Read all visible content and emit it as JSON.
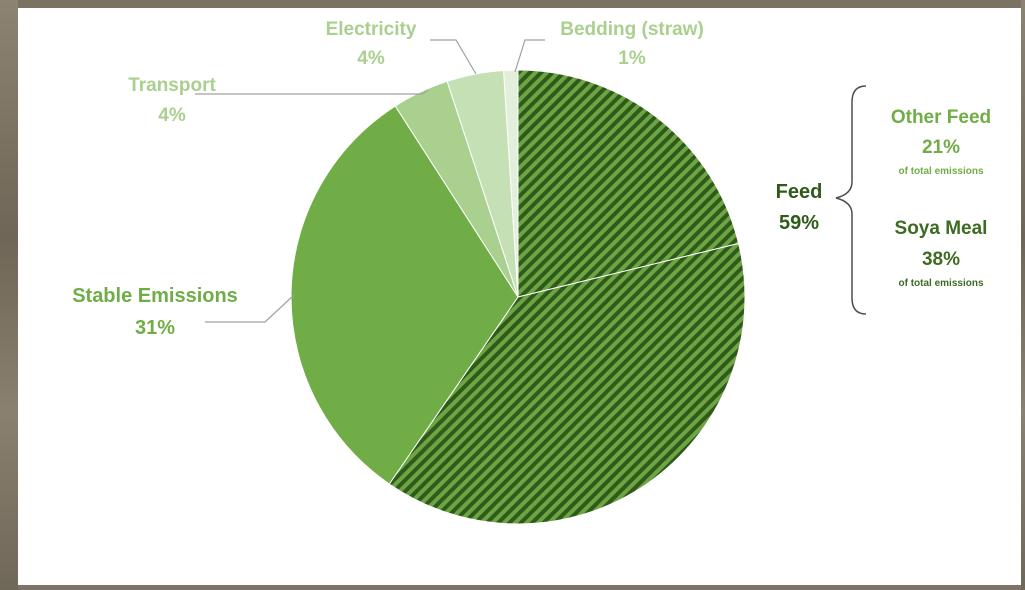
{
  "chart_data": {
    "type": "pie",
    "title": "",
    "slices": [
      {
        "label": "Other Feed",
        "value": 21,
        "color": "#4b7d2a",
        "pattern": "hatched"
      },
      {
        "label": "Soya Meal",
        "value": 38,
        "color": "#3d6b22",
        "pattern": "hatched"
      },
      {
        "label": "Stable Emissions",
        "value": 31,
        "color": "#70ad47"
      },
      {
        "label": "Transport",
        "value": 4,
        "color": "#a9d08e"
      },
      {
        "label": "Electricity",
        "value": 4,
        "color": "#c5e0b4"
      },
      {
        "label": "Bedding (straw)",
        "value": 1,
        "color": "#e2efda"
      }
    ],
    "labels": {
      "electricity": {
        "name": "Electricity",
        "pct": "4%"
      },
      "bedding": {
        "name": "Bedding (straw)",
        "pct": "1%"
      },
      "transport": {
        "name": "Transport",
        "pct": "4%"
      },
      "stable": {
        "name": "Stable Emissions",
        "pct": "31%"
      },
      "feed": {
        "name": "Feed",
        "pct": "59%"
      },
      "other_feed": {
        "name": "Other Feed",
        "pct": "21%",
        "note": "of total emissions"
      },
      "soya": {
        "name": "Soya Meal",
        "pct": "38%",
        "note": "of total emissions"
      }
    },
    "colors": {
      "feed_label": "#2e5b1a",
      "light_label": "#a9d08e",
      "mid_label": "#70ad47"
    }
  }
}
